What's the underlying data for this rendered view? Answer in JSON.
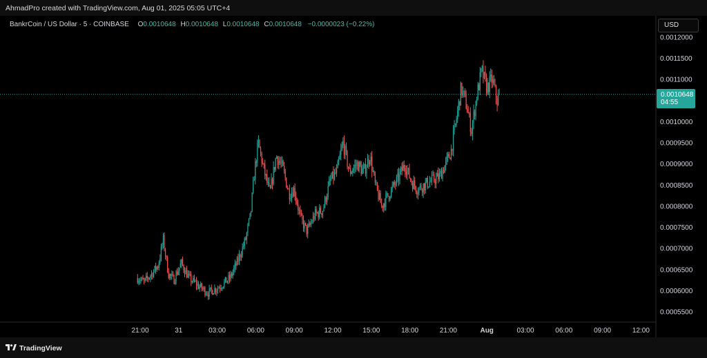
{
  "header": {
    "created_by": "AhmadPro created with TradingView.com, Aug 01, 2025 05:05 UTC+4"
  },
  "legend": {
    "symbol": "BankrCoin / US Dollar · 5 · COINBASE",
    "o_label": "O",
    "o_value": "0.0010648",
    "h_label": "H",
    "h_value": "0.0010648",
    "l_label": "L",
    "l_value": "0.0010648",
    "c_label": "C",
    "c_value": "0.0010648",
    "change": "−0.0000023 (−0.22%)"
  },
  "currency_button": "USD",
  "last_price": {
    "value": "0.0010648",
    "countdown": "04:55"
  },
  "footer": {
    "brand": "TradingView"
  },
  "colors": {
    "up": "#26a69a",
    "down": "#ef5350",
    "background": "#000000",
    "price_line": "#26a69a"
  },
  "chart_data": {
    "type": "candlestick",
    "title": "BankrCoin / US Dollar · 5 · COINBASE",
    "ylim": [
      0.00053,
      0.00122
    ],
    "y_ticks": [
      "0.0012000",
      "0.0011500",
      "0.0011000",
      "0.0010000",
      "0.0009500",
      "0.0009000",
      "0.0008500",
      "0.0008000",
      "0.0007500",
      "0.0007000",
      "0.0006500",
      "0.0006000",
      "0.0005500"
    ],
    "x_ticks": [
      "21:00",
      "31",
      "03:00",
      "06:00",
      "09:00",
      "12:00",
      "15:00",
      "18:00",
      "21:00",
      "Aug",
      "03:00",
      "06:00",
      "09:00",
      "12:00"
    ],
    "x_tick_hours": [
      0,
      3,
      6,
      9,
      12,
      15,
      18,
      21,
      24,
      27,
      30,
      33,
      36,
      39
    ],
    "last_value": 0.0010648,
    "grid": false,
    "close_path": [
      [
        -0.2,
        0.00063
      ],
      [
        0.3,
        0.00062
      ],
      [
        0.9,
        0.00064
      ],
      [
        1.4,
        0.00066
      ],
      [
        1.8,
        0.00072
      ],
      [
        2.2,
        0.00064
      ],
      [
        2.6,
        0.000625
      ],
      [
        3.2,
        0.000665
      ],
      [
        3.8,
        0.00063
      ],
      [
        4.6,
        0.00061
      ],
      [
        5.3,
        0.000595
      ],
      [
        6.2,
        0.00061
      ],
      [
        7.0,
        0.00063
      ],
      [
        7.6,
        0.00067
      ],
      [
        8.2,
        0.00072
      ],
      [
        8.6,
        0.00078
      ],
      [
        8.9,
        0.00088
      ],
      [
        9.2,
        0.00095
      ],
      [
        9.6,
        0.00089
      ],
      [
        10.1,
        0.00083
      ],
      [
        10.6,
        0.00092
      ],
      [
        11.1,
        0.00089
      ],
      [
        11.6,
        0.00083
      ],
      [
        12.0,
        0.00084
      ],
      [
        12.5,
        0.00077
      ],
      [
        13.0,
        0.00074
      ],
      [
        13.6,
        0.00078
      ],
      [
        14.2,
        0.00079
      ],
      [
        14.8,
        0.00086
      ],
      [
        15.3,
        0.00088
      ],
      [
        15.8,
        0.00095
      ],
      [
        16.3,
        0.00088
      ],
      [
        16.9,
        0.0009
      ],
      [
        17.4,
        0.00088
      ],
      [
        17.9,
        0.00092
      ],
      [
        18.3,
        0.00085
      ],
      [
        18.8,
        0.0008
      ],
      [
        19.4,
        0.00083
      ],
      [
        20.0,
        0.00086
      ],
      [
        20.6,
        0.0009
      ],
      [
        21.1,
        0.00086
      ],
      [
        21.6,
        0.00084
      ],
      [
        22.1,
        0.00085
      ],
      [
        22.7,
        0.00086
      ],
      [
        23.3,
        0.00087
      ],
      [
        23.8,
        0.0009
      ],
      [
        24.2,
        0.00093
      ],
      [
        24.6,
        0.001
      ],
      [
        25.0,
        0.00108
      ],
      [
        25.4,
        0.00104
      ],
      [
        25.8,
        0.00098
      ],
      [
        26.2,
        0.00106
      ],
      [
        26.6,
        0.00112
      ],
      [
        27.0,
        0.00108
      ],
      [
        27.4,
        0.0011
      ],
      [
        27.8,
        0.00105
      ],
      [
        28.0,
        0.001065
      ]
    ]
  }
}
